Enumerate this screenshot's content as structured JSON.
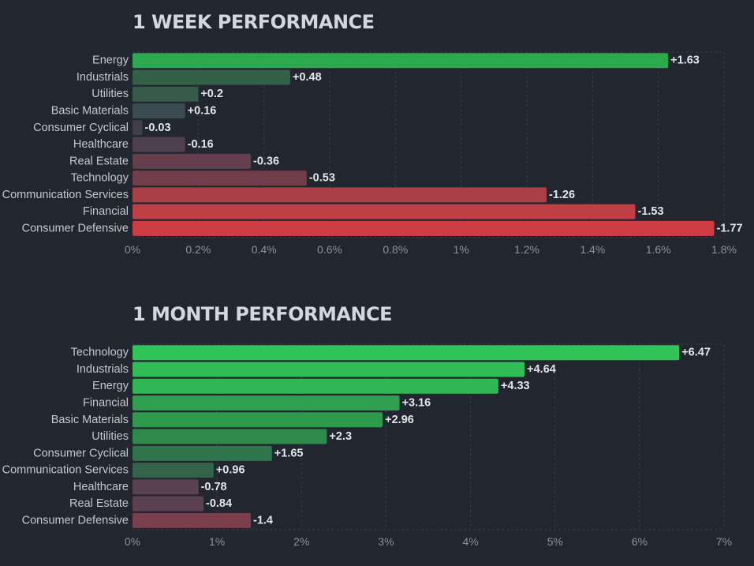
{
  "chart_data": [
    {
      "type": "bar",
      "orientation": "horizontal",
      "title": "1 WEEK PERFORMANCE",
      "categories": [
        "Energy",
        "Industrials",
        "Utilities",
        "Basic Materials",
        "Consumer Cyclical",
        "Healthcare",
        "Real Estate",
        "Technology",
        "Communication Services",
        "Financial",
        "Consumer Defensive"
      ],
      "values": [
        1.63,
        0.48,
        0.2,
        0.16,
        -0.03,
        -0.16,
        -0.36,
        -0.53,
        -1.26,
        -1.53,
        -1.77
      ],
      "value_labels": [
        "+1.63",
        "+0.48",
        "+0.2",
        "+0.16",
        "-0.03",
        "-0.16",
        "-0.36",
        "-0.53",
        "-1.26",
        "-1.53",
        "-1.77"
      ],
      "bar_colors": [
        "#2ea84f",
        "#356048",
        "#355a4c",
        "#3a4c52",
        "#413f4e",
        "#4f4050",
        "#663f4c",
        "#713f4b",
        "#a93f47",
        "#c03e45",
        "#cd3d43"
      ],
      "xlim": [
        0,
        1.8
      ],
      "x_ticks": [
        "0%",
        "0.2%",
        "0.4%",
        "0.6%",
        "0.8%",
        "1%",
        "1.2%",
        "1.4%",
        "1.6%",
        "1.8%"
      ],
      "x_tick_values": [
        0,
        0.2,
        0.4,
        0.6,
        0.8,
        1,
        1.2,
        1.4,
        1.6,
        1.8
      ],
      "grid": true,
      "note_axis": "bar length = absolute value"
    },
    {
      "type": "bar",
      "orientation": "horizontal",
      "title": "1 MONTH PERFORMANCE",
      "categories": [
        "Technology",
        "Industrials",
        "Energy",
        "Financial",
        "Basic Materials",
        "Utilities",
        "Consumer Cyclical",
        "Communication Services",
        "Healthcare",
        "Real Estate",
        "Consumer Defensive"
      ],
      "values": [
        6.47,
        4.64,
        4.33,
        3.16,
        2.96,
        2.3,
        1.65,
        0.96,
        -0.78,
        -0.84,
        -1.4
      ],
      "value_labels": [
        "+6.47",
        "+4.64",
        "+4.33",
        "+3.16",
        "+2.96",
        "+2.3",
        "+1.65",
        "+0.96",
        "-0.78",
        "-0.84",
        "-1.4"
      ],
      "bar_colors": [
        "#33c459",
        "#31bc56",
        "#30b653",
        "#2f9f4f",
        "#2e9a4d",
        "#2e8a4b",
        "#2f744a",
        "#34624b",
        "#5a4252",
        "#5c4251",
        "#7a3f4c"
      ],
      "xlim": [
        0,
        7
      ],
      "x_ticks": [
        "0%",
        "1%",
        "2%",
        "3%",
        "4%",
        "5%",
        "6%",
        "7%"
      ],
      "x_tick_values": [
        0,
        1,
        2,
        3,
        4,
        5,
        6,
        7
      ],
      "grid": true
    }
  ]
}
